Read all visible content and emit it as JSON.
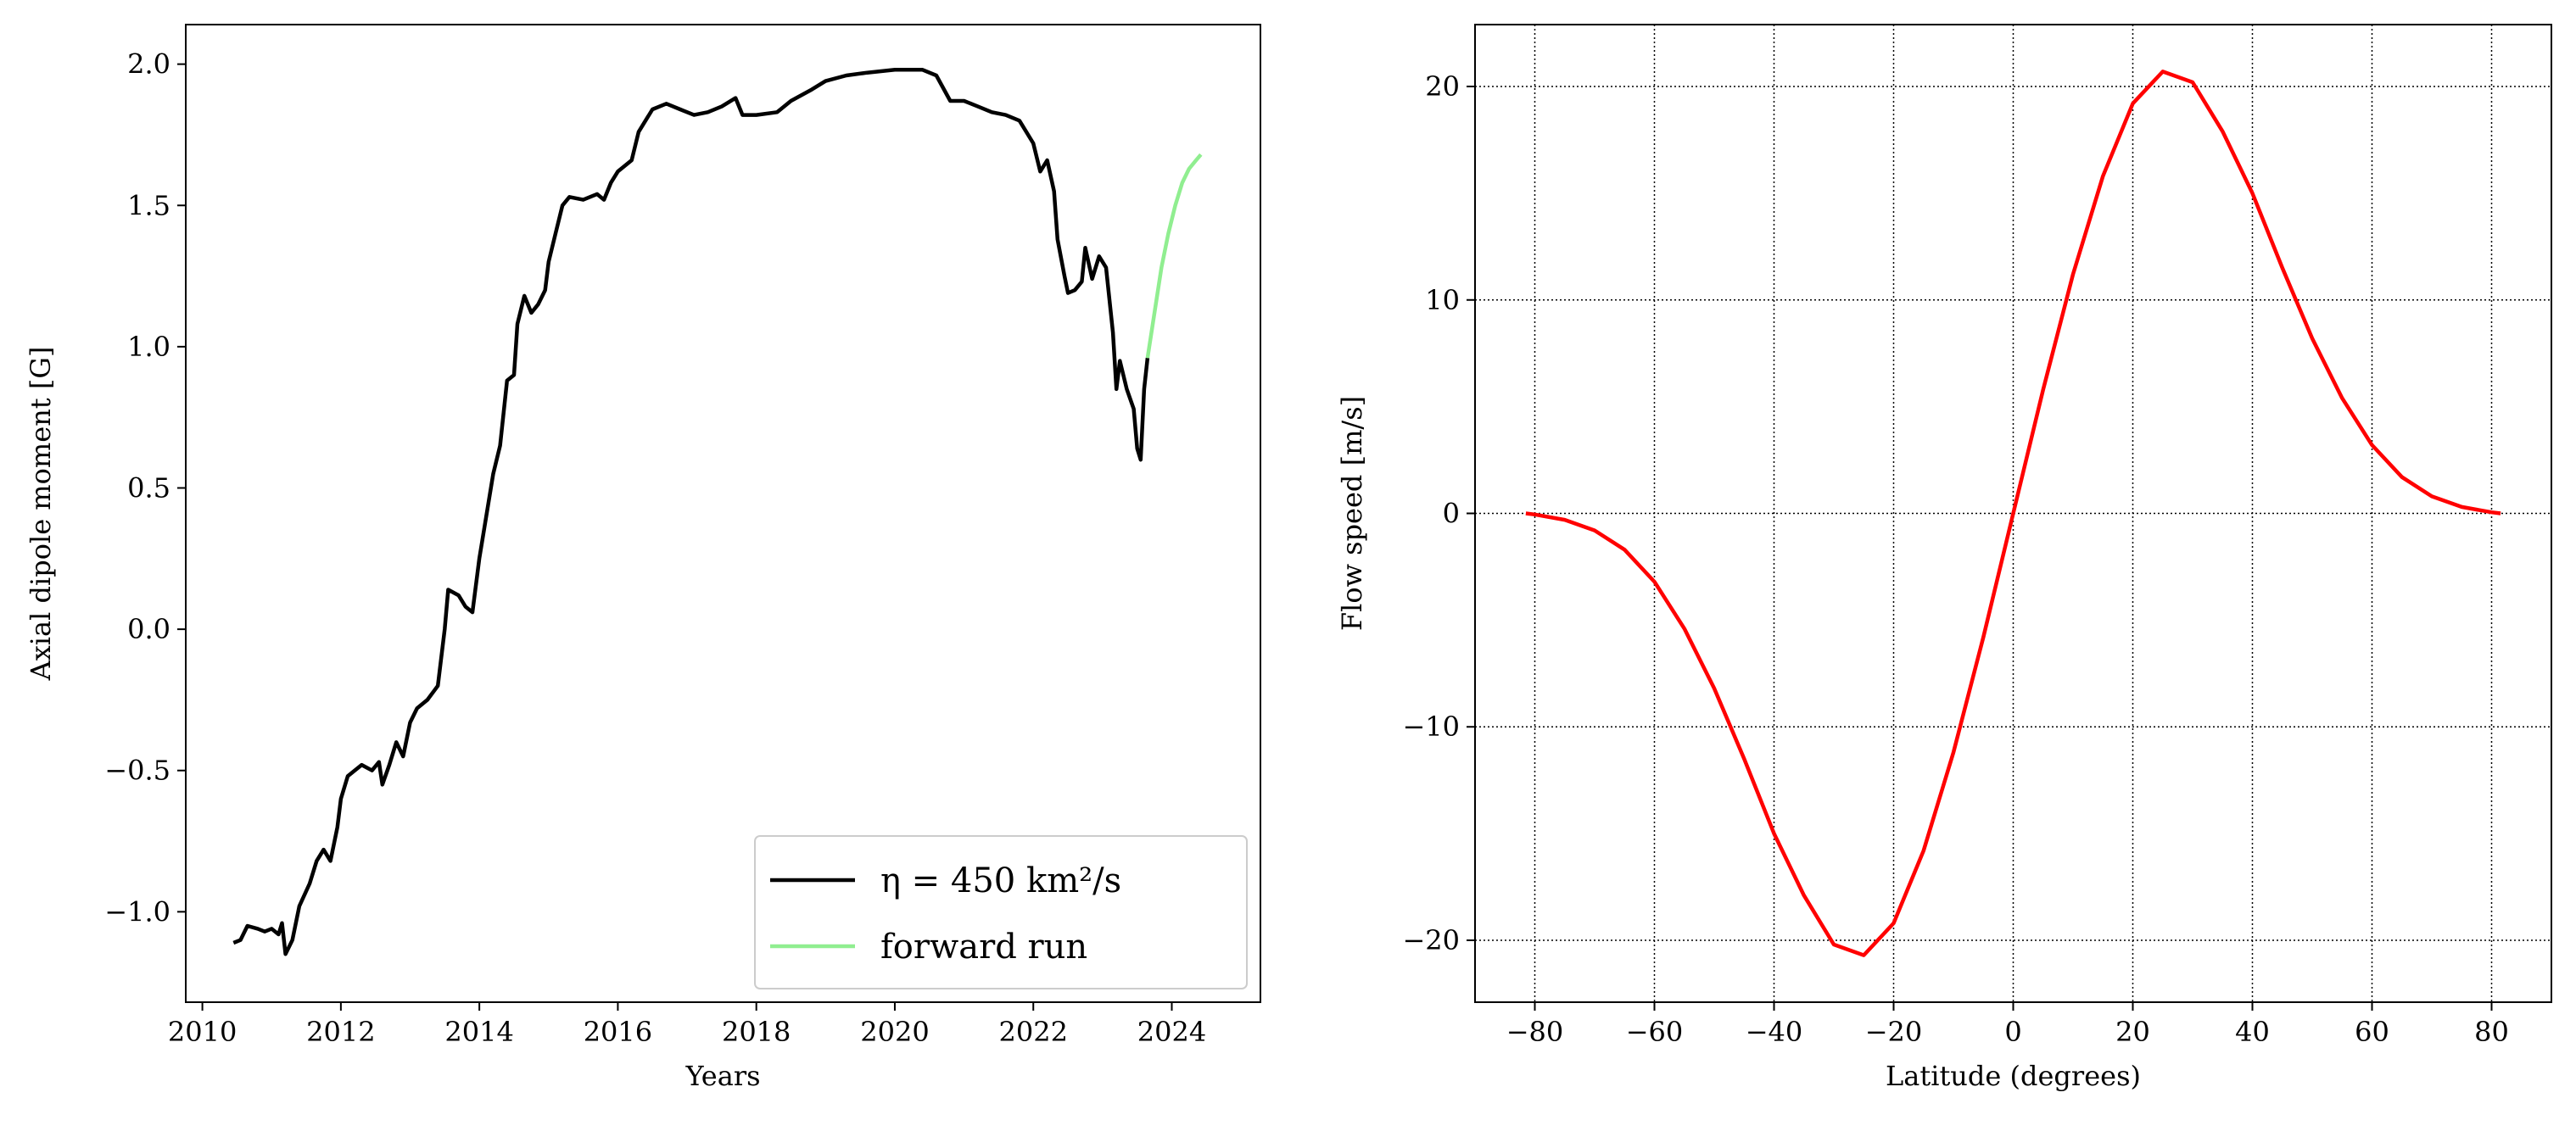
{
  "chart_data": [
    {
      "type": "line",
      "xlabel": "Years",
      "ylabel": "Axial dipole moment [G]",
      "xlim": [
        2009.76,
        2025.28
      ],
      "ylim": [
        -1.32,
        2.14
      ],
      "xticks": [
        2010,
        2012,
        2014,
        2016,
        2018,
        2020,
        2022,
        2024
      ],
      "yticks": [
        {
          "value": -1.0,
          "label": "−1.0"
        },
        {
          "value": -0.5,
          "label": "−0.5"
        },
        {
          "value": 0.0,
          "label": "0.0"
        },
        0.5,
        {
          "value": 1.0,
          "label": "1.0"
        },
        1.5,
        {
          "value": 2.0,
          "label": "2.0"
        }
      ],
      "grid": false,
      "legend": "lower right",
      "series": [
        {
          "name": "η = 450 km²/s",
          "color": "#000000",
          "x": [
            2010.45,
            2010.55,
            2010.65,
            2010.8,
            2010.9,
            2011.0,
            2011.1,
            2011.15,
            2011.2,
            2011.3,
            2011.4,
            2011.55,
            2011.65,
            2011.75,
            2011.85,
            2011.95,
            2012.0,
            2012.1,
            2012.2,
            2012.3,
            2012.45,
            2012.55,
            2012.6,
            2012.7,
            2012.8,
            2012.9,
            2013.0,
            2013.1,
            2013.25,
            2013.4,
            2013.5,
            2013.55,
            2013.7,
            2013.8,
            2013.9,
            2014.0,
            2014.1,
            2014.2,
            2014.3,
            2014.4,
            2014.5,
            2014.55,
            2014.65,
            2014.75,
            2014.85,
            2014.95,
            2015.0,
            2015.1,
            2015.2,
            2015.3,
            2015.5,
            2015.7,
            2015.8,
            2015.9,
            2016.0,
            2016.2,
            2016.3,
            2016.5,
            2016.7,
            2016.9,
            2017.1,
            2017.3,
            2017.5,
            2017.7,
            2017.8,
            2018.0,
            2018.3,
            2018.5,
            2018.8,
            2019.0,
            2019.3,
            2019.6,
            2020.0,
            2020.4,
            2020.6,
            2020.8,
            2021.0,
            2021.2,
            2021.4,
            2021.6,
            2021.8,
            2022.0,
            2022.1,
            2022.2,
            2022.3,
            2022.35,
            2022.45,
            2022.5,
            2022.6,
            2022.7,
            2022.75,
            2022.85,
            2022.95,
            2023.05,
            2023.15,
            2023.2,
            2023.25,
            2023.35,
            2023.45,
            2023.5,
            2023.55,
            2023.6,
            2023.65
          ],
          "values": [
            -1.11,
            -1.1,
            -1.05,
            -1.06,
            -1.07,
            -1.06,
            -1.08,
            -1.04,
            -1.15,
            -1.1,
            -0.98,
            -0.9,
            -0.82,
            -0.78,
            -0.82,
            -0.7,
            -0.6,
            -0.52,
            -0.5,
            -0.48,
            -0.5,
            -0.47,
            -0.55,
            -0.48,
            -0.4,
            -0.45,
            -0.33,
            -0.28,
            -0.25,
            -0.2,
            0.0,
            0.14,
            0.12,
            0.08,
            0.06,
            0.25,
            0.4,
            0.55,
            0.65,
            0.88,
            0.9,
            1.08,
            1.18,
            1.12,
            1.15,
            1.2,
            1.3,
            1.4,
            1.5,
            1.53,
            1.52,
            1.54,
            1.52,
            1.58,
            1.62,
            1.66,
            1.76,
            1.84,
            1.86,
            1.84,
            1.82,
            1.83,
            1.85,
            1.88,
            1.82,
            1.82,
            1.83,
            1.87,
            1.91,
            1.94,
            1.96,
            1.97,
            1.98,
            1.98,
            1.96,
            1.87,
            1.87,
            1.85,
            1.83,
            1.82,
            1.8,
            1.72,
            1.62,
            1.66,
            1.55,
            1.38,
            1.25,
            1.19,
            1.2,
            1.23,
            1.35,
            1.24,
            1.32,
            1.28,
            1.05,
            0.85,
            0.95,
            0.85,
            0.78,
            0.64,
            0.6,
            0.85,
            0.96
          ]
        },
        {
          "name": "forward run",
          "color": "#90ee90",
          "x": [
            2023.65,
            2023.75,
            2023.85,
            2023.95,
            2024.05,
            2024.15,
            2024.25,
            2024.35,
            2024.42
          ],
          "values": [
            0.96,
            1.12,
            1.28,
            1.4,
            1.5,
            1.58,
            1.63,
            1.66,
            1.68
          ]
        }
      ]
    },
    {
      "type": "line",
      "xlabel": "Latitude (degrees)",
      "ylabel": "Flow speed [m/s]",
      "xlim": [
        -90,
        90
      ],
      "ylim": [
        -22.9,
        22.9
      ],
      "xticks": [
        {
          "value": -80,
          "label": "−80"
        },
        {
          "value": -60,
          "label": "−60"
        },
        {
          "value": -40,
          "label": "−40"
        },
        {
          "value": -20,
          "label": "−20"
        },
        0,
        20,
        40,
        60,
        80
      ],
      "yticks": [
        {
          "value": -20,
          "label": "−20"
        },
        {
          "value": -10,
          "label": "−10"
        },
        0,
        10,
        20
      ],
      "grid": true,
      "series": [
        {
          "color": "#ff0000",
          "x": [
            -81.5,
            -80,
            -75,
            -70,
            -65,
            -60,
            -55,
            -50,
            -45,
            -40,
            -35,
            -30,
            -25,
            -20,
            -15,
            -10,
            -5,
            0,
            5,
            10,
            15,
            20,
            25,
            30,
            35,
            40,
            45,
            50,
            55,
            60,
            65,
            70,
            75,
            80,
            81.5
          ],
          "values": [
            0,
            -0.05,
            -0.3,
            -0.8,
            -1.7,
            -3.2,
            -5.4,
            -8.2,
            -11.5,
            -15.0,
            -17.9,
            -20.2,
            -20.7,
            -19.2,
            -15.8,
            -11.2,
            -5.8,
            0,
            5.8,
            11.2,
            15.8,
            19.2,
            20.7,
            20.2,
            17.9,
            15.0,
            11.5,
            8.2,
            5.4,
            3.2,
            1.7,
            0.8,
            0.3,
            0.05,
            0
          ]
        }
      ]
    }
  ]
}
